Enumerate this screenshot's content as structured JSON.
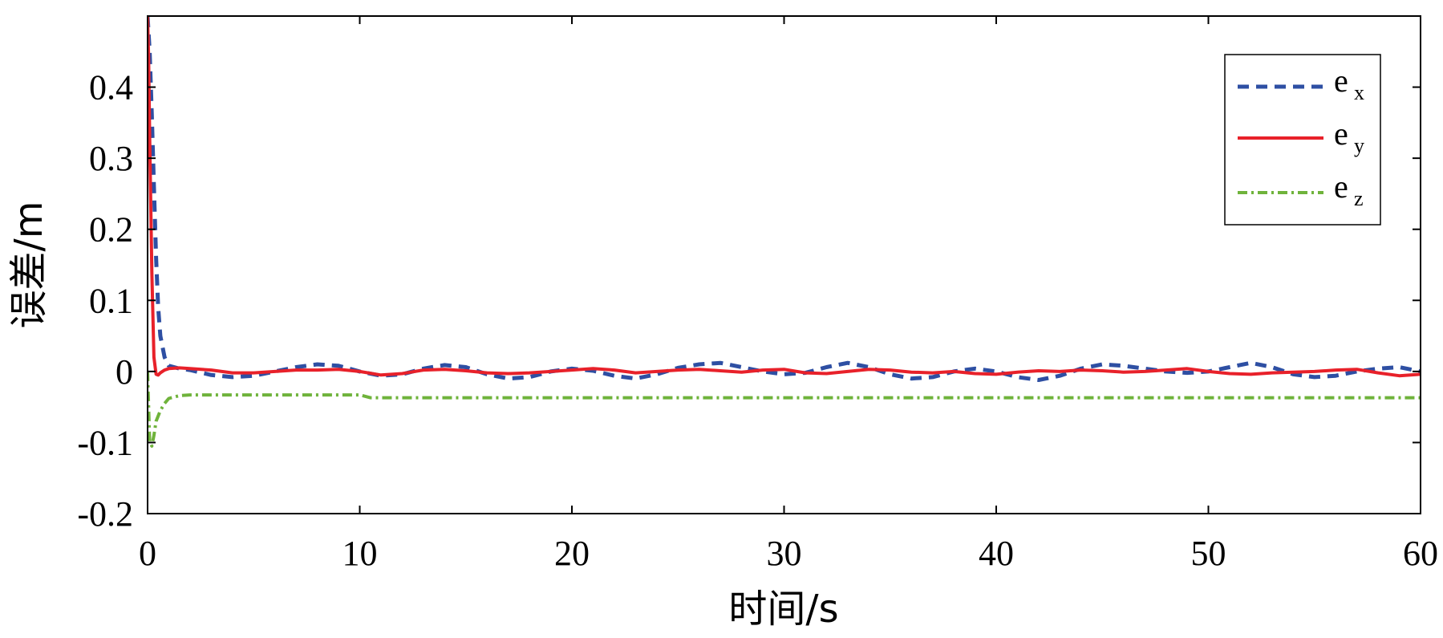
{
  "chart_data": {
    "type": "line",
    "xlabel": "时间/s",
    "ylabel": "误差/m",
    "xlim": [
      0,
      60
    ],
    "ylim": [
      -0.2,
      0.5
    ],
    "xticks": [
      0,
      10,
      20,
      30,
      40,
      50,
      60
    ],
    "xtick_labels": [
      "0",
      "10",
      "20",
      "30",
      "40",
      "50",
      "60"
    ],
    "yticks": [
      -0.2,
      -0.1,
      0,
      0.1,
      0.2,
      0.3,
      0.4
    ],
    "ytick_labels": [
      "-0.2",
      "-0.1",
      "0",
      "0.1",
      "0.2",
      "0.3",
      "0.4"
    ],
    "grid": false,
    "legend_position": "top-right",
    "series": [
      {
        "name": "e",
        "subscript": "x",
        "color": "#2e4fa3",
        "style": "dashed",
        "x": [
          0,
          0.1,
          0.2,
          0.3,
          0.4,
          0.5,
          0.6,
          0.8,
          1,
          1.5,
          2,
          3,
          4,
          5,
          6,
          7,
          8,
          9,
          10,
          11,
          12,
          13,
          14,
          15,
          16,
          17,
          18,
          19,
          20,
          21,
          22,
          23,
          24,
          25,
          26,
          27,
          28,
          29,
          30,
          31,
          32,
          33,
          34,
          35,
          36,
          37,
          38,
          39,
          40,
          41,
          42,
          43,
          44,
          45,
          46,
          47,
          48,
          49,
          50,
          51,
          52,
          53,
          54,
          55,
          56,
          57,
          58,
          59,
          60
        ],
        "y": [
          0.5,
          0.45,
          0.36,
          0.26,
          0.16,
          0.09,
          0.05,
          0.02,
          0.008,
          0.004,
          0.002,
          -0.005,
          -0.008,
          -0.006,
          0.0,
          0.006,
          0.01,
          0.008,
          0.0,
          -0.006,
          -0.004,
          0.004,
          0.009,
          0.006,
          -0.004,
          -0.01,
          -0.008,
          0.0,
          0.004,
          0.001,
          -0.006,
          -0.01,
          -0.004,
          0.005,
          0.01,
          0.012,
          0.006,
          0.0,
          -0.004,
          -0.002,
          0.006,
          0.012,
          0.006,
          -0.004,
          -0.01,
          -0.008,
          0.0,
          0.004,
          0.0,
          -0.008,
          -0.012,
          -0.006,
          0.004,
          0.01,
          0.008,
          0.004,
          0.0,
          -0.002,
          0.0,
          0.006,
          0.012,
          0.006,
          -0.004,
          -0.008,
          -0.006,
          0.0,
          0.004,
          0.006,
          0.0
        ]
      },
      {
        "name": "e",
        "subscript": "y",
        "color": "#e8212a",
        "style": "solid",
        "x": [
          0,
          0.05,
          0.1,
          0.2,
          0.3,
          0.4,
          0.5,
          0.6,
          0.8,
          1,
          1.5,
          2,
          3,
          4,
          5,
          6,
          7,
          8,
          9,
          10,
          11,
          12,
          13,
          14,
          15,
          16,
          17,
          18,
          19,
          20,
          21,
          22,
          23,
          24,
          25,
          26,
          27,
          28,
          29,
          30,
          31,
          32,
          33,
          34,
          35,
          36,
          37,
          38,
          39,
          40,
          41,
          42,
          43,
          44,
          45,
          46,
          47,
          48,
          49,
          50,
          51,
          52,
          53,
          54,
          55,
          56,
          57,
          58,
          59,
          60
        ],
        "y": [
          0.5,
          0.44,
          0.33,
          0.14,
          0.02,
          -0.004,
          -0.005,
          -0.002,
          0.002,
          0.004,
          0.005,
          0.004,
          0.002,
          -0.002,
          -0.002,
          0.0,
          0.002,
          0.002,
          0.003,
          0.0,
          -0.005,
          -0.003,
          0.002,
          0.003,
          0.001,
          -0.002,
          -0.003,
          -0.002,
          0.0,
          0.002,
          0.004,
          0.002,
          -0.002,
          0.0,
          0.002,
          0.003,
          0.001,
          -0.001,
          0.002,
          0.003,
          -0.002,
          -0.003,
          0.0,
          0.003,
          0.002,
          -0.001,
          -0.002,
          0.0,
          -0.003,
          -0.004,
          -0.001,
          0.001,
          0.0,
          0.002,
          0.001,
          -0.001,
          0.0,
          0.002,
          0.004,
          0.0,
          -0.003,
          -0.004,
          -0.002,
          -0.001,
          0.0,
          0.002,
          0.003,
          -0.002,
          -0.006,
          -0.004
        ]
      },
      {
        "name": "e",
        "subscript": "z",
        "color": "#6fb33b",
        "style": "dashdot",
        "x": [
          0,
          0.05,
          0.1,
          0.2,
          0.3,
          0.4,
          0.6,
          0.8,
          1,
          1.5,
          2,
          3,
          5,
          8,
          10,
          10.5,
          12,
          20,
          30,
          40,
          50,
          60
        ],
        "y": [
          0.0,
          -0.05,
          -0.1,
          -0.105,
          -0.09,
          -0.07,
          -0.055,
          -0.045,
          -0.038,
          -0.034,
          -0.033,
          -0.033,
          -0.033,
          -0.033,
          -0.033,
          -0.037,
          -0.037,
          -0.037,
          -0.037,
          -0.037,
          -0.037,
          -0.037
        ]
      }
    ]
  }
}
